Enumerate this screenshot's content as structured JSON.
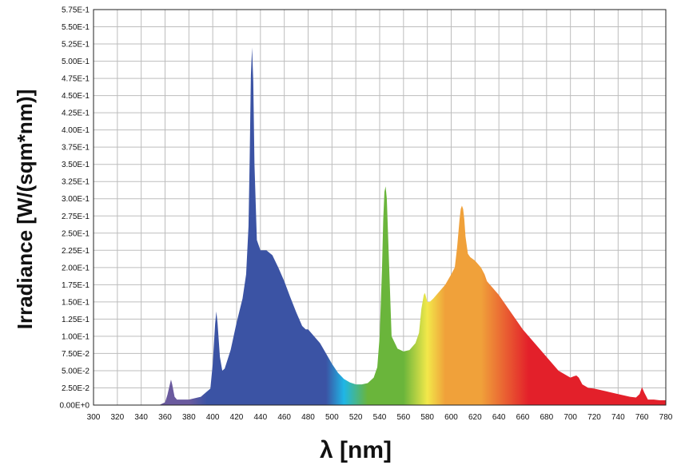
{
  "chart_data": {
    "type": "area",
    "title": "",
    "xlabel": "λ [nm]",
    "ylabel": "Irradiance [W/(sqm*nm)]",
    "xlim": [
      300,
      780
    ],
    "ylim": [
      0,
      0.575
    ],
    "grid": true,
    "x_ticks": [
      "300",
      "320",
      "340",
      "360",
      "380",
      "400",
      "420",
      "440",
      "460",
      "480",
      "500",
      "520",
      "540",
      "560",
      "580",
      "600",
      "620",
      "640",
      "660",
      "680",
      "700",
      "720",
      "740",
      "760",
      "780"
    ],
    "y_ticks": [
      "0.00E+0",
      "2.50E-2",
      "5.00E-2",
      "7.50E-2",
      "1.00E-1",
      "1.25E-1",
      "1.50E-1",
      "1.75E-1",
      "2.00E-1",
      "2.25E-1",
      "2.50E-1",
      "2.75E-1",
      "3.00E-1",
      "3.25E-1",
      "3.50E-1",
      "3.75E-1",
      "4.00E-1",
      "4.25E-1",
      "4.50E-1",
      "4.75E-1",
      "5.00E-1",
      "5.25E-1",
      "5.50E-1",
      "5.75E-1"
    ],
    "colors": {
      "uv": "#6a5a9e",
      "blue": "#3b53a4",
      "cyan": "#1fb6e6",
      "green": "#6ab53b",
      "yellow": "#f2e84a",
      "orange": "#f0a13a",
      "red": "#e3202a"
    },
    "series": [
      {
        "x": [
          355,
          360,
          362,
          364,
          365,
          366,
          368,
          370,
          380,
          390,
          398,
          400,
          402,
          403,
          404,
          406,
          408,
          410,
          415,
          420,
          425,
          428,
          430,
          431,
          432,
          433,
          434,
          435,
          437,
          440,
          445,
          450,
          455,
          460,
          465,
          470,
          475,
          478,
          480,
          485,
          490,
          495,
          500,
          505,
          510,
          515,
          520,
          525,
          530,
          535,
          538,
          540,
          542,
          543,
          544,
          545,
          546,
          548,
          550,
          555,
          560,
          565,
          570,
          573,
          575,
          577,
          578,
          580,
          582,
          585,
          590,
          595,
          600,
          603,
          605,
          607,
          608,
          609,
          610,
          611,
          612,
          614,
          616,
          620,
          625,
          628,
          630,
          640,
          650,
          660,
          670,
          680,
          690,
          700,
          703,
          705,
          707,
          710,
          715,
          720,
          730,
          740,
          750,
          755,
          758,
          760,
          762,
          765,
          770,
          775,
          780
        ],
        "y": [
          0.0,
          0.004,
          0.015,
          0.03,
          0.037,
          0.03,
          0.012,
          0.008,
          0.008,
          0.012,
          0.024,
          0.06,
          0.118,
          0.136,
          0.12,
          0.07,
          0.05,
          0.053,
          0.08,
          0.12,
          0.155,
          0.19,
          0.26,
          0.36,
          0.48,
          0.52,
          0.47,
          0.35,
          0.24,
          0.225,
          0.225,
          0.218,
          0.2,
          0.18,
          0.157,
          0.135,
          0.115,
          0.11,
          0.11,
          0.1,
          0.09,
          0.075,
          0.06,
          0.047,
          0.038,
          0.033,
          0.03,
          0.03,
          0.032,
          0.04,
          0.055,
          0.1,
          0.2,
          0.27,
          0.31,
          0.318,
          0.3,
          0.2,
          0.1,
          0.082,
          0.078,
          0.08,
          0.09,
          0.105,
          0.14,
          0.16,
          0.163,
          0.15,
          0.15,
          0.155,
          0.165,
          0.175,
          0.19,
          0.2,
          0.23,
          0.27,
          0.285,
          0.29,
          0.285,
          0.27,
          0.245,
          0.22,
          0.215,
          0.21,
          0.2,
          0.19,
          0.18,
          0.16,
          0.135,
          0.11,
          0.09,
          0.07,
          0.05,
          0.04,
          0.042,
          0.043,
          0.04,
          0.03,
          0.025,
          0.024,
          0.02,
          0.016,
          0.012,
          0.011,
          0.016,
          0.026,
          0.018,
          0.008,
          0.008,
          0.007,
          0.007
        ]
      }
    ]
  }
}
